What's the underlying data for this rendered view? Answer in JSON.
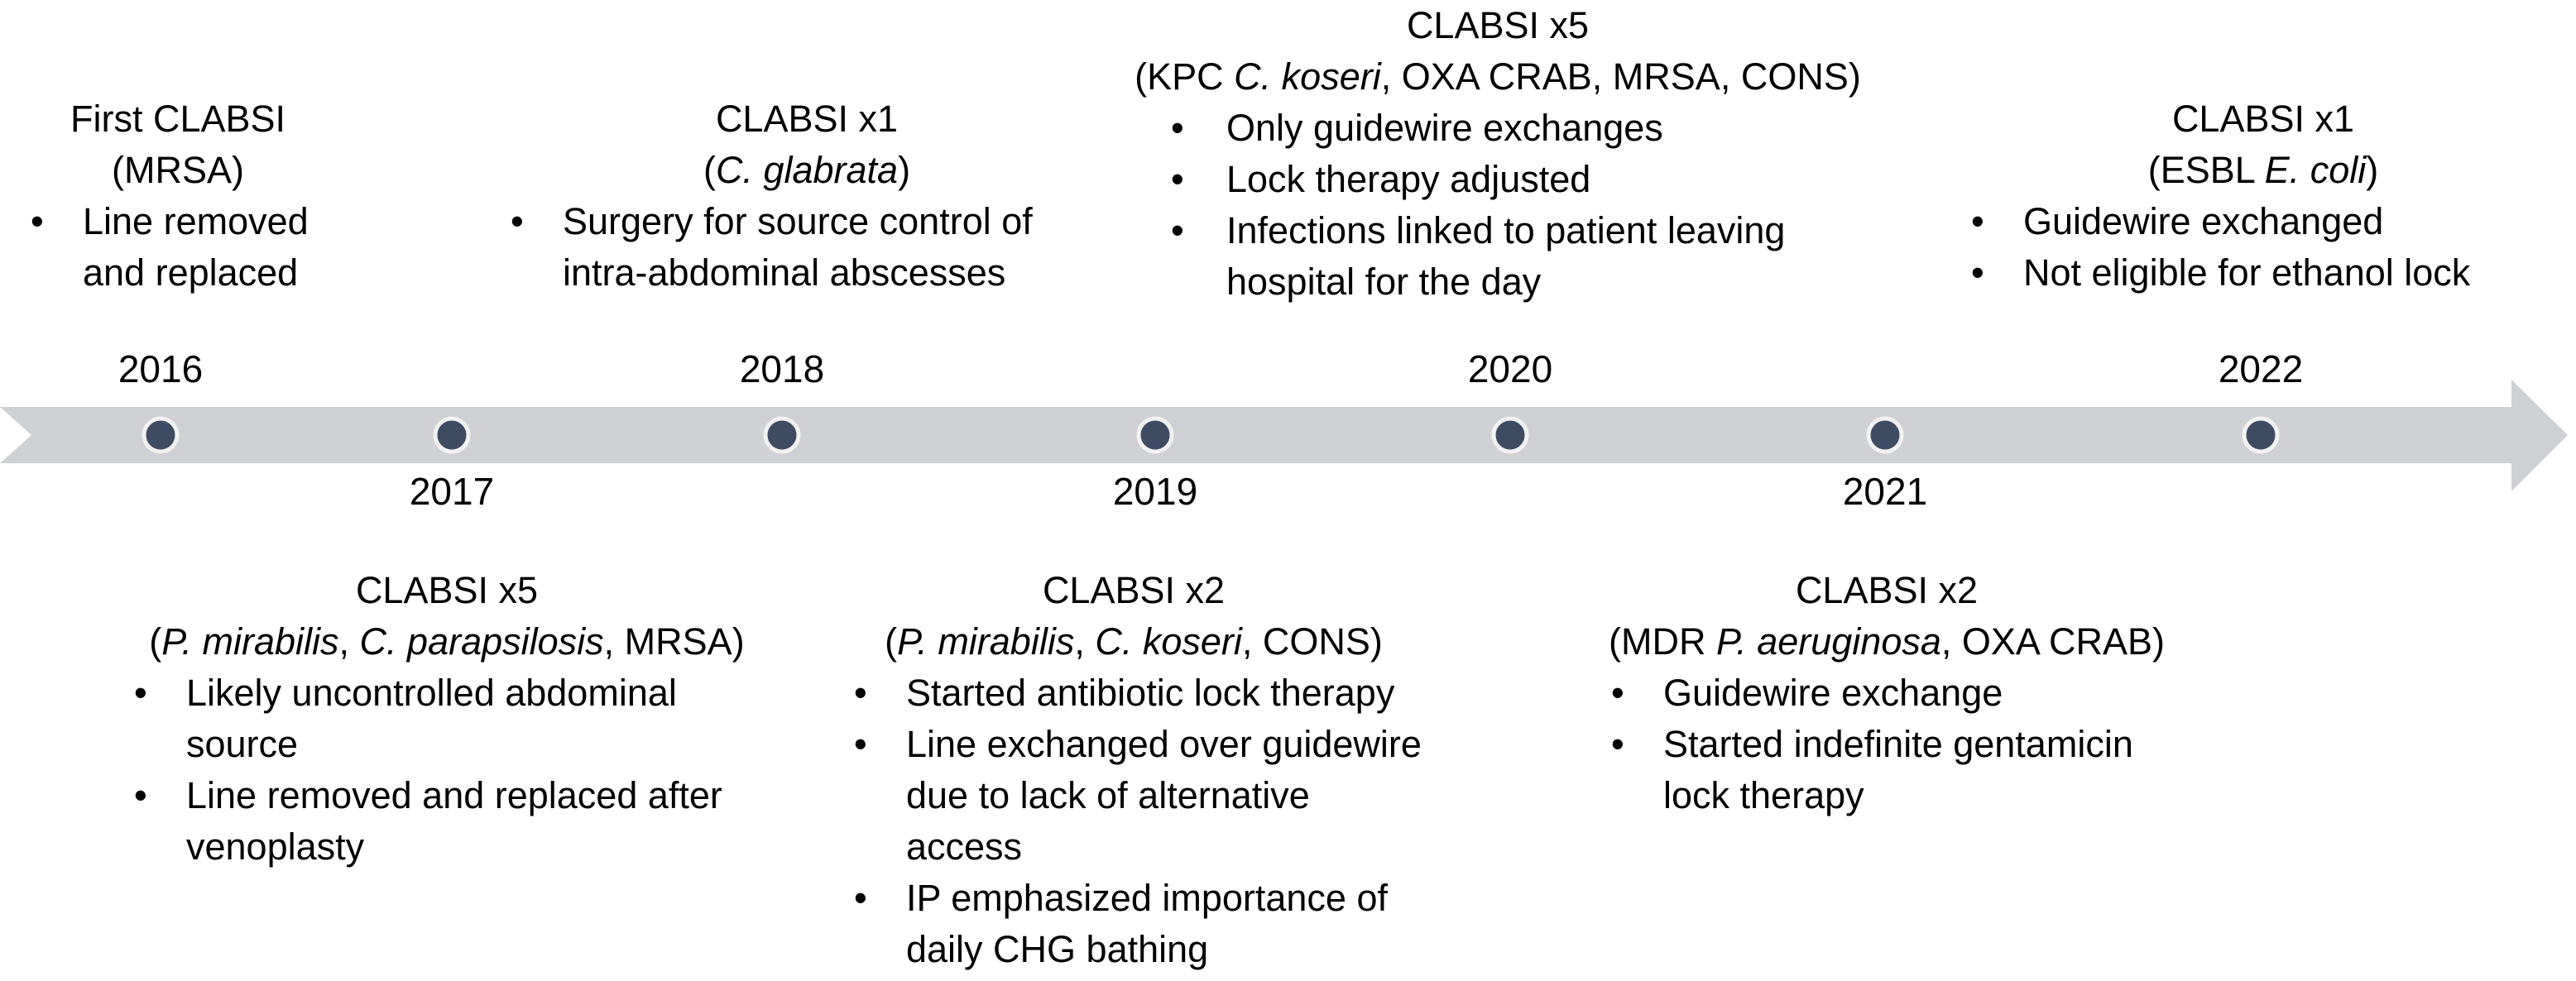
{
  "timeline": {
    "bar_color": "#CFD1D5",
    "dot_color": "#3E4C63",
    "dot_ring_color": "#F1F1F1",
    "years": [
      {
        "label": "2016",
        "position": "above"
      },
      {
        "label": "2017",
        "position": "below"
      },
      {
        "label": "2018",
        "position": "above"
      },
      {
        "label": "2019",
        "position": "below"
      },
      {
        "label": "2020",
        "position": "above"
      },
      {
        "label": "2021",
        "position": "below"
      },
      {
        "label": "2022",
        "position": "above"
      }
    ]
  },
  "events": [
    {
      "year": "2016",
      "position": "above",
      "title": "First CLABSI",
      "organisms_runs": [
        {
          "text": "(MRSA)"
        }
      ],
      "bullets": [
        "Line removed and replaced"
      ]
    },
    {
      "year": "2017",
      "position": "below",
      "title": "CLABSI x5",
      "organisms_runs": [
        {
          "text": "("
        },
        {
          "text": "P. mirabilis",
          "italic": true
        },
        {
          "text": ", "
        },
        {
          "text": "C. parapsilosis",
          "italic": true
        },
        {
          "text": ", MRSA)"
        }
      ],
      "bullets": [
        "Likely uncontrolled abdominal source",
        "Line removed and replaced after venoplasty"
      ]
    },
    {
      "year": "2018",
      "position": "above",
      "title": "CLABSI x1",
      "organisms_runs": [
        {
          "text": "("
        },
        {
          "text": "C. glabrata",
          "italic": true
        },
        {
          "text": ")"
        }
      ],
      "bullets": [
        "Surgery for source control of intra-abdominal abscesses"
      ]
    },
    {
      "year": "2019",
      "position": "below",
      "title": "CLABSI x2",
      "organisms_runs": [
        {
          "text": "("
        },
        {
          "text": "P. mirabilis",
          "italic": true
        },
        {
          "text": ", "
        },
        {
          "text": "C. koseri",
          "italic": true
        },
        {
          "text": ", CONS)"
        }
      ],
      "bullets": [
        "Started antibiotic lock therapy",
        "Line exchanged over guidewire due to lack of alternative access",
        "IP emphasized importance of daily CHG bathing"
      ]
    },
    {
      "year": "2020",
      "position": "above",
      "title": "CLABSI x5",
      "organisms_runs": [
        {
          "text": "(KPC "
        },
        {
          "text": "C. koseri",
          "italic": true
        },
        {
          "text": ", OXA CRAB, MRSA, CONS)"
        }
      ],
      "bullets": [
        "Only guidewire exchanges",
        "Lock therapy adjusted",
        "Infections linked to patient leaving hospital for the day"
      ]
    },
    {
      "year": "2021",
      "position": "below",
      "title": "CLABSI x2",
      "organisms_runs": [
        {
          "text": "(MDR "
        },
        {
          "text": "P. aeruginosa",
          "italic": true
        },
        {
          "text": ", OXA CRAB)"
        }
      ],
      "bullets": [
        "Guidewire exchange",
        "Started indefinite gentamicin lock therapy"
      ]
    },
    {
      "year": "2022",
      "position": "above",
      "title": "CLABSI x1",
      "organisms_runs": [
        {
          "text": "(ESBL "
        },
        {
          "text": "E. coli",
          "italic": true
        },
        {
          "text": ")"
        }
      ],
      "bullets": [
        "Guidewire exchanged",
        "Not eligible for ethanol lock"
      ]
    }
  ]
}
